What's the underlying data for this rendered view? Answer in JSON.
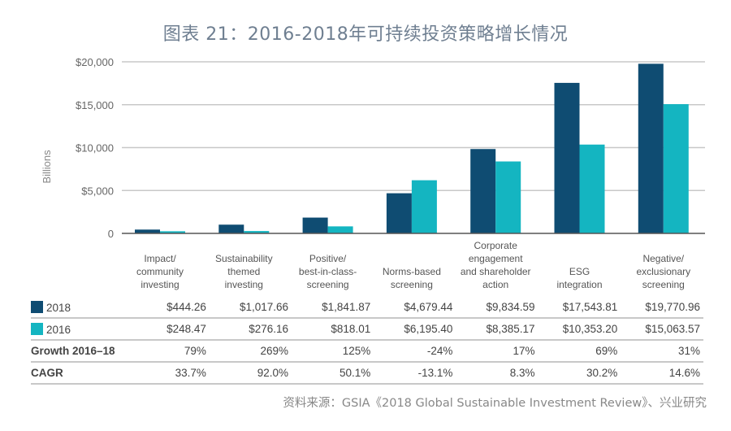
{
  "title": "图表 21：2016-2018年可持续投资策略增长情况",
  "source": "资料来源：GSIA《2018 Global Sustainable Investment Review》、兴业研究",
  "colors": {
    "series_2018": "#0f4c72",
    "series_2016": "#14b5c1",
    "grid": "#c8c8c8",
    "axis": "#555555"
  },
  "chart_data": {
    "type": "bar",
    "title": "图表 21：2016-2018年可持续投资策略增长情况",
    "xlabel": "",
    "ylabel": "Billions",
    "ylim": [
      0,
      20000
    ],
    "yticks": [
      0,
      5000,
      10000,
      15000,
      20000
    ],
    "ytick_labels": [
      "0",
      "$5,000",
      "$10,000",
      "$15,000",
      "$20,000"
    ],
    "grid": true,
    "legend": "table-left",
    "categories": [
      "Impact/\ncommunity\ninvesting",
      "Sustainability\nthemed\ninvesting",
      "Positive/\nbest-in-class-\nscreening",
      "Norms-based\nscreening",
      "Corporate\nengagement\nand shareholder\naction",
      "ESG\nintegration",
      "Negative/\nexclusionary\nscreening"
    ],
    "series": [
      {
        "name": "2018",
        "values": [
          444.26,
          1017.66,
          1841.87,
          4679.44,
          9834.59,
          17543.81,
          19770.96
        ]
      },
      {
        "name": "2016",
        "values": [
          248.47,
          276.16,
          818.01,
          6195.4,
          8385.17,
          10353.2,
          15063.57
        ]
      }
    ]
  },
  "table": {
    "rows": [
      {
        "label": "2018",
        "swatch": "series_2018",
        "bold": false,
        "cells": [
          "$444.26",
          "$1,017.66",
          "$1,841.87",
          "$4,679.44",
          "$9,834.59",
          "$17,543.81",
          "$19,770.96"
        ]
      },
      {
        "label": "2016",
        "swatch": "series_2016",
        "bold": false,
        "cells": [
          "$248.47",
          "$276.16",
          "$818.01",
          "$6,195.40",
          "$8,385.17",
          "$10,353.20",
          "$15,063.57"
        ]
      },
      {
        "label": "Growth 2016–18",
        "bold": true,
        "cells": [
          "79%",
          "269%",
          "125%",
          "-24%",
          "17%",
          "69%",
          "31%"
        ]
      },
      {
        "label": "CAGR",
        "bold": true,
        "cells": [
          "33.7%",
          "92.0%",
          "50.1%",
          "-13.1%",
          "8.3%",
          "30.2%",
          "14.6%"
        ]
      }
    ]
  }
}
